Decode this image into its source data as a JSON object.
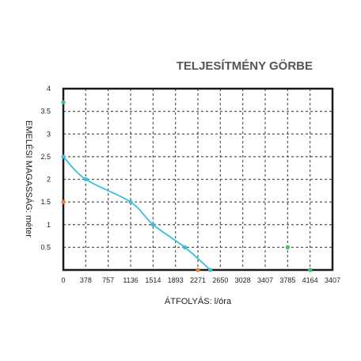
{
  "chart_data": {
    "type": "line",
    "title": "TELJESÍTMÉNY GÖRBE",
    "xlabel": "ÁTFOLYÁS: l/óra",
    "ylabel": "EMELÉSI MAGASSÁG: méter",
    "x_tick_labels": [
      "0",
      "378",
      "757",
      "1136",
      "1514",
      "1893",
      "2271",
      "2650",
      "3028",
      "3407",
      "3785",
      "4164",
      "3407"
    ],
    "y_tick_labels": [
      "0.5",
      "1",
      "1.5",
      "2",
      "2.5",
      "3",
      "3.5",
      "4"
    ],
    "ylim": [
      0,
      4
    ],
    "grid": true,
    "colors": {
      "curve": "#3bbfdc",
      "curve_points": "#3bbfdc",
      "orange_markers": "#f07a35",
      "green_markers": "#3fbf6a",
      "frame": "#1a1a1a",
      "grid": "#555555",
      "title": "#555555"
    },
    "series": [
      {
        "points": [
          {
            "x": 0,
            "y": 2.5
          },
          {
            "x": 378,
            "y": 2.0
          },
          {
            "x": 1136,
            "y": 1.5
          },
          {
            "x": 1514,
            "y": 1.0
          },
          {
            "x": 2050,
            "y": 0.5
          },
          {
            "x": 2480,
            "y": 0.0
          }
        ]
      }
    ],
    "markers": [
      {
        "x": 0,
        "y": 3.7,
        "color": "green"
      },
      {
        "x": 0,
        "y": 1.5,
        "color": "orange"
      },
      {
        "x": 2271,
        "y": 0.0,
        "color": "orange"
      },
      {
        "x": 3785,
        "y": 0.5,
        "color": "green"
      },
      {
        "x": 4164,
        "y": 0.0,
        "color": "green"
      }
    ]
  }
}
